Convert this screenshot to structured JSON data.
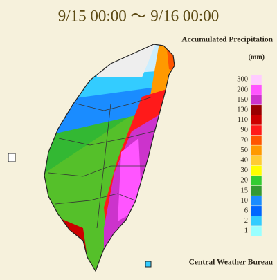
{
  "header": {
    "title": "9/15 00:00 ～ 9/16 00:00"
  },
  "legend": {
    "title": "Accumulated Precipitation",
    "unit": "(mm)",
    "items": [
      {
        "label": "300",
        "color": "#ffccff"
      },
      {
        "label": "200",
        "color": "#ff55ff"
      },
      {
        "label": "150",
        "color": "#cc33cc"
      },
      {
        "label": "130",
        "color": "#990000"
      },
      {
        "label": "110",
        "color": "#cc0000"
      },
      {
        "label": "90",
        "color": "#ff1a1a"
      },
      {
        "label": "70",
        "color": "#ff5500"
      },
      {
        "label": "50",
        "color": "#ff9900"
      },
      {
        "label": "40",
        "color": "#ffcc33"
      },
      {
        "label": "30",
        "color": "#ffff00"
      },
      {
        "label": "20",
        "color": "#33cc33"
      },
      {
        "label": "15",
        "color": "#339933"
      },
      {
        "label": "10",
        "color": "#1a8cff"
      },
      {
        "label": "6",
        "color": "#0066ff"
      },
      {
        "label": "2",
        "color": "#33ccff"
      },
      {
        "label": "1",
        "color": "#99ffff"
      }
    ]
  },
  "footer": {
    "credit": "Central Weather Bureau"
  }
}
